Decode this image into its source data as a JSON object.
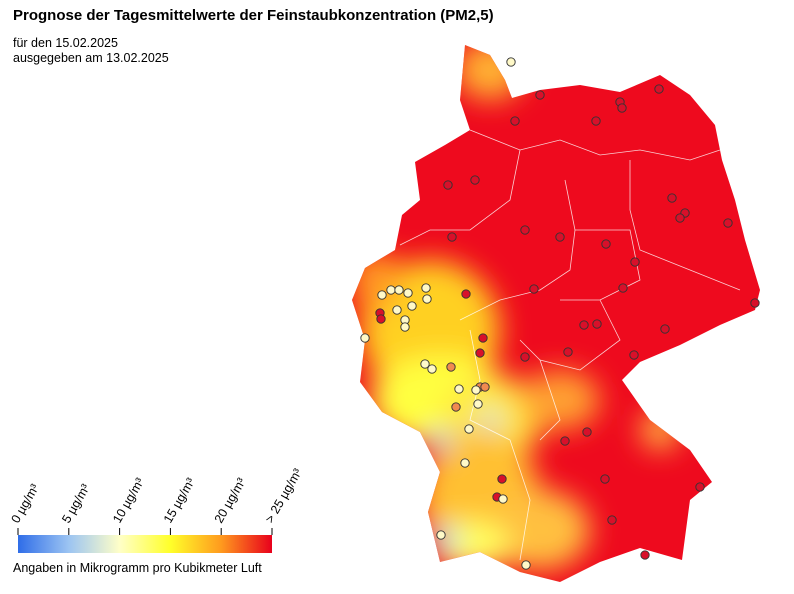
{
  "header": {
    "title": "Prognose der Tagesmittelwerte der Feinstaubkonzentration (PM2,5)",
    "date_line": "für den 15.02.2025",
    "issued_line": "ausgegeben am 13.02.2025"
  },
  "legend": {
    "scale": [
      0,
      25
    ],
    "ticks": [
      {
        "value": 0,
        "label": "0 µg/m³"
      },
      {
        "value": 5,
        "label": "5 µg/m³"
      },
      {
        "value": 10,
        "label": "10 µg/m³"
      },
      {
        "value": 15,
        "label": "15 µg/m³"
      },
      {
        "value": 20,
        "label": "20 µg/m³"
      },
      {
        "value": 25,
        "label": "> 25 µg/m³"
      }
    ],
    "caption": "Angaben in Mikrogramm pro Kubikmeter Luft"
  }
}
